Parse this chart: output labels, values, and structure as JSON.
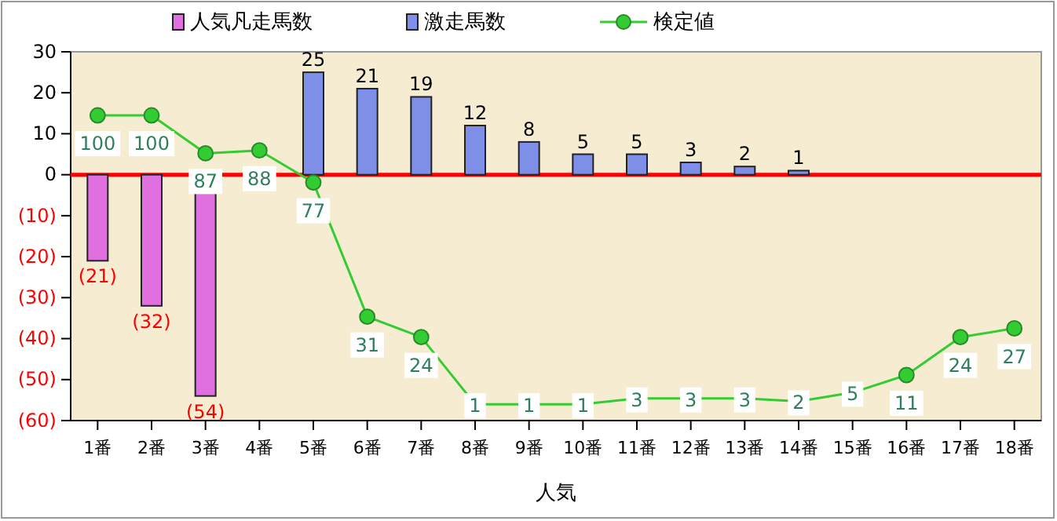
{
  "chart_data": {
    "type": "bar",
    "xlabel": "人気",
    "categories": [
      "1番",
      "2番",
      "3番",
      "4番",
      "5番",
      "6番",
      "7番",
      "8番",
      "9番",
      "10番",
      "11番",
      "12番",
      "13番",
      "14番",
      "15番",
      "16番",
      "17番",
      "18番"
    ],
    "series": [
      {
        "name": "人気凡走馬数",
        "color": "#e070e0",
        "values": [
          -21,
          -32,
          -54,
          null,
          null,
          null,
          null,
          null,
          null,
          null,
          null,
          null,
          null,
          null,
          null,
          null,
          null,
          null
        ],
        "value_labels": [
          "(21)",
          "(32)",
          "(54)",
          null,
          null,
          null,
          null,
          null,
          null,
          null,
          null,
          null,
          null,
          null,
          null,
          null,
          null,
          null
        ]
      },
      {
        "name": "激走馬数",
        "color": "#7f8fe8",
        "values": [
          null,
          null,
          null,
          null,
          25,
          21,
          19,
          12,
          8,
          5,
          5,
          3,
          2,
          1,
          null,
          null,
          null,
          null
        ],
        "value_labels": [
          null,
          null,
          null,
          null,
          "25",
          "21",
          "19",
          "12",
          "8",
          "5",
          "5",
          "3",
          "2",
          "1",
          null,
          null,
          null,
          null
        ]
      },
      {
        "name": "検定値",
        "type": "line",
        "axis": "y2",
        "color": "#33cc33",
        "values": [
          100,
          100,
          87,
          88,
          77,
          31,
          24,
          1,
          1,
          1,
          3,
          3,
          3,
          2,
          5,
          11,
          24,
          27
        ],
        "value_labels": [
          "100",
          "100",
          "87",
          "88",
          "77",
          "31",
          "24",
          "1",
          "1",
          "1",
          "3",
          "3",
          "3",
          "2",
          "5",
          "11",
          "24",
          "27"
        ]
      }
    ],
    "ylim": [
      -60,
      30
    ],
    "yticks": [
      30,
      20,
      10,
      0,
      {
        "value": -10,
        "label": "(10)"
      },
      {
        "value": -20,
        "label": "(20)"
      },
      {
        "value": -30,
        "label": "(30)"
      },
      {
        "value": -40,
        "label": "(40)"
      },
      {
        "value": -50,
        "label": "(50)"
      },
      {
        "value": -60,
        "label": "(60)"
      }
    ],
    "y2lim": [
      -4.6,
      121.8
    ],
    "ref_lines": [
      {
        "axis": "y",
        "value": 0,
        "color": "#ff0000"
      }
    ],
    "marker": "circle",
    "legend": "top",
    "grid": false
  }
}
